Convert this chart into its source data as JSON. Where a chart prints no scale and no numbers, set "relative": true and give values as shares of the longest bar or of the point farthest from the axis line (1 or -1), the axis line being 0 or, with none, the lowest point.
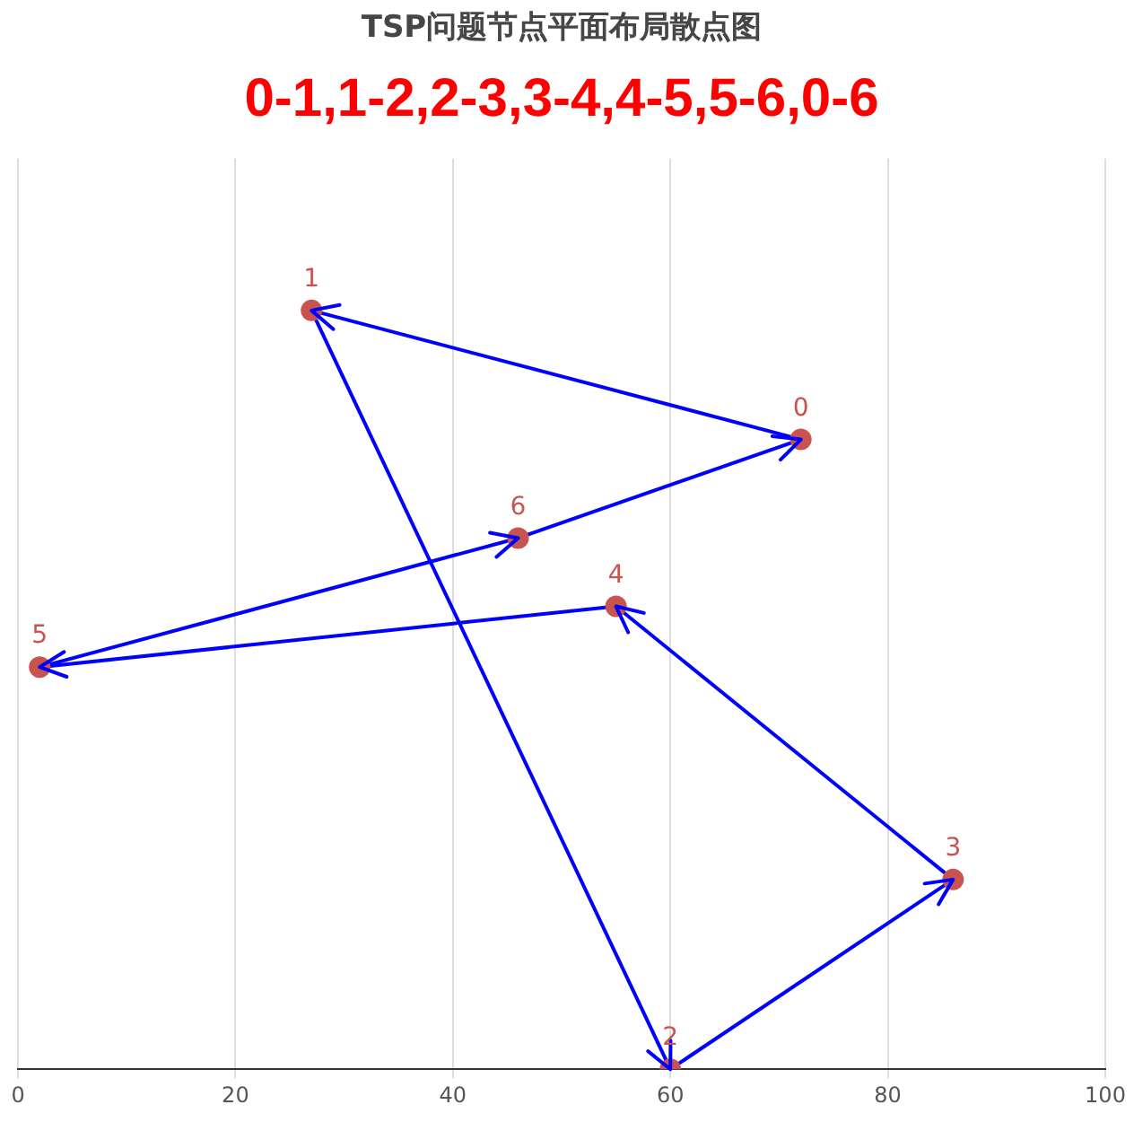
{
  "chart_data": {
    "type": "scatter",
    "title": "TSP问题节点平面布局散点图",
    "subtitle": "0-1,1-2,2-3,3-4,4-5,5-6,0-6",
    "relative": true,
    "xlim": [
      0,
      100
    ],
    "xticks": [
      0,
      20,
      40,
      60,
      80,
      100
    ],
    "grid": "x",
    "legend": false,
    "marker": "circle",
    "series": [
      {
        "color": "#c9544f",
        "x": [
          72,
          27,
          60,
          86,
          55,
          2,
          46
        ],
        "values": [
          0.83,
          1,
          0,
          0.25,
          0.61,
          0.53,
          0.7
        ]
      },
      {
        "type": "line",
        "color": "#0000ff",
        "marker": "none",
        "x": [
          72,
          27
        ],
        "values": [
          0.83,
          1
        ]
      },
      {
        "type": "line",
        "color": "#0000ff",
        "marker": "none",
        "x": [
          27,
          60
        ],
        "values": [
          1,
          0
        ]
      },
      {
        "type": "line",
        "color": "#0000ff",
        "marker": "none",
        "x": [
          60,
          86
        ],
        "values": [
          0,
          0.25
        ]
      },
      {
        "type": "line",
        "color": "#0000ff",
        "marker": "none",
        "x": [
          86,
          55
        ],
        "values": [
          0.25,
          0.61
        ]
      },
      {
        "type": "line",
        "color": "#0000ff",
        "marker": "none",
        "x": [
          55,
          2
        ],
        "values": [
          0.61,
          0.53
        ]
      },
      {
        "type": "line",
        "color": "#0000ff",
        "marker": "none",
        "x": [
          2,
          46
        ],
        "values": [
          0.53,
          0.7
        ]
      },
      {
        "type": "line",
        "color": "#0000ff",
        "marker": "none",
        "x": [
          46,
          72
        ],
        "values": [
          0.7,
          0.83
        ]
      }
    ],
    "annotations": [
      {
        "text": "0",
        "x": 72,
        "y": 0.83
      },
      {
        "text": "1",
        "x": 27,
        "y": 1
      },
      {
        "text": "2",
        "x": 60,
        "y": 0
      },
      {
        "text": "3",
        "x": 86,
        "y": 0.25
      },
      {
        "text": "4",
        "x": 55,
        "y": 0.61
      },
      {
        "text": "5",
        "x": 2,
        "y": 0.53
      },
      {
        "text": "6",
        "x": 46,
        "y": 0.7
      }
    ]
  }
}
